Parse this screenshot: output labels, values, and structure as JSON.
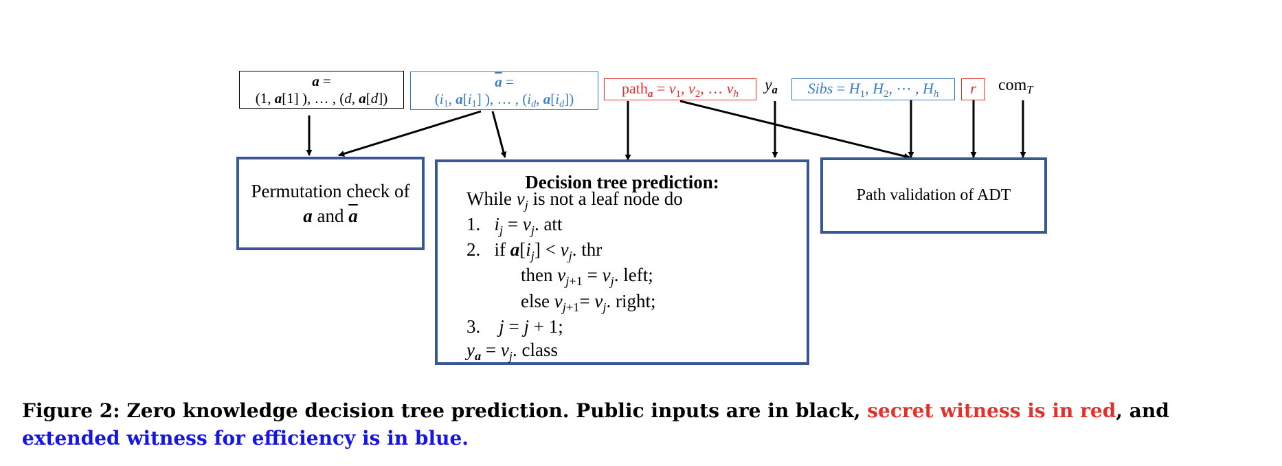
{
  "inputs": {
    "a_top": "a =",
    "a_bottom": "(1, a[1] ), … , (d, a[d])",
    "abar_top": "ā =",
    "abar_bottom": "(i1, a[i1] ), … , (id, a[id])",
    "path": "patha = v1, v2, … vh",
    "ya": "ya",
    "sibs": "Sibs = H1, H2, ⋯ , Hh",
    "r": "r",
    "com": "comT"
  },
  "boxes": {
    "permutation": "Permutation check of a and ā",
    "decision": {
      "title": "Decision tree prediction:",
      "lines": [
        "While vj is not a leaf node do",
        "1.   ij = vj. att",
        "2.   if a[ij] < vj. thr",
        "then vj+1 = vj. left;",
        "else vj+1= vj. right;",
        "3.    j = j + 1;",
        "ya = vj. class"
      ]
    },
    "path_validation": "Path validation of ADT"
  },
  "caption": {
    "prefix": "Figure 2: Zero knowledge decision tree prediction. Public inputs are in black, ",
    "red": "secret witness is in red",
    "middle": ", and ",
    "blue": "extended witness for efficiency is in blue."
  },
  "colors": {
    "secret": "#e0312a",
    "extended": "#3b7bc4",
    "caption_blue": "#1515e6",
    "box_border": "#3a5795"
  }
}
